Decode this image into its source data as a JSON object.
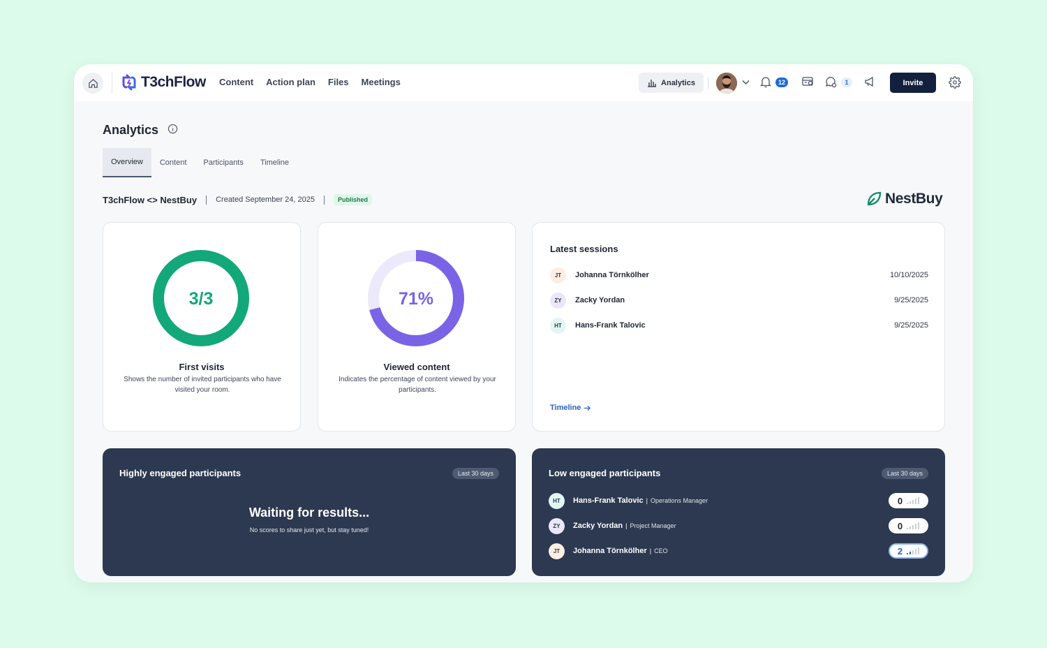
{
  "app": {
    "name": "T3chFlow"
  },
  "nav": {
    "items": [
      "Content",
      "Action plan",
      "Files",
      "Meetings"
    ]
  },
  "topbar": {
    "analytics_label": "Analytics",
    "notifications_count": "12",
    "messages_count": "1",
    "invite_label": "Invite"
  },
  "page": {
    "title": "Analytics",
    "tabs": [
      "Overview",
      "Content",
      "Participants",
      "Timeline"
    ],
    "active_tab": "Overview",
    "room_name": "T3chFlow <> NestBuy",
    "created": "Created September 24, 2025",
    "status": "Published",
    "client_logo": "NestBuy"
  },
  "stats": [
    {
      "value": "3/3",
      "fraction": 1.0,
      "color": "#12a87a",
      "track": "#e8f7f0",
      "title": "First visits",
      "desc": "Shows the number of invited participants who have visited your room."
    },
    {
      "value": "71%",
      "fraction": 0.71,
      "color": "#7b63e6",
      "track": "#ece9fb",
      "title": "Viewed content",
      "desc": "Indicates the percentage of content viewed by your participants."
    }
  ],
  "sessions": {
    "title": "Latest sessions",
    "rows": [
      {
        "initials": "JT",
        "name": "Johanna Törnkölher",
        "date": "10/10/2025",
        "color": "#fdeee2"
      },
      {
        "initials": "ZY",
        "name": "Zacky Yordan",
        "date": "9/25/2025",
        "color": "#ebe7fb"
      },
      {
        "initials": "HT",
        "name": "Hans-Frank Talovic",
        "date": "9/25/2025",
        "color": "#e2f7f4"
      }
    ],
    "link": "Timeline"
  },
  "high_engaged": {
    "title": "Highly engaged participants",
    "period": "Last 30 days",
    "empty_title": "Waiting for results...",
    "empty_sub": "No scores to share just yet, but stay tuned!"
  },
  "low_engaged": {
    "title": "Low engaged participants",
    "period": "Last 30 days",
    "rows": [
      {
        "initials": "HT",
        "name": "Hans-Frank Talovic",
        "role": "Operations Manager",
        "score": "0",
        "color": "#e2f7f4"
      },
      {
        "initials": "ZY",
        "name": "Zacky Yordan",
        "role": "Project Manager",
        "score": "0",
        "color": "#ebe7fb"
      },
      {
        "initials": "JT",
        "name": "Johanna Törnkölher",
        "role": "CEO",
        "score": "2",
        "color": "#fdeee2"
      }
    ]
  }
}
